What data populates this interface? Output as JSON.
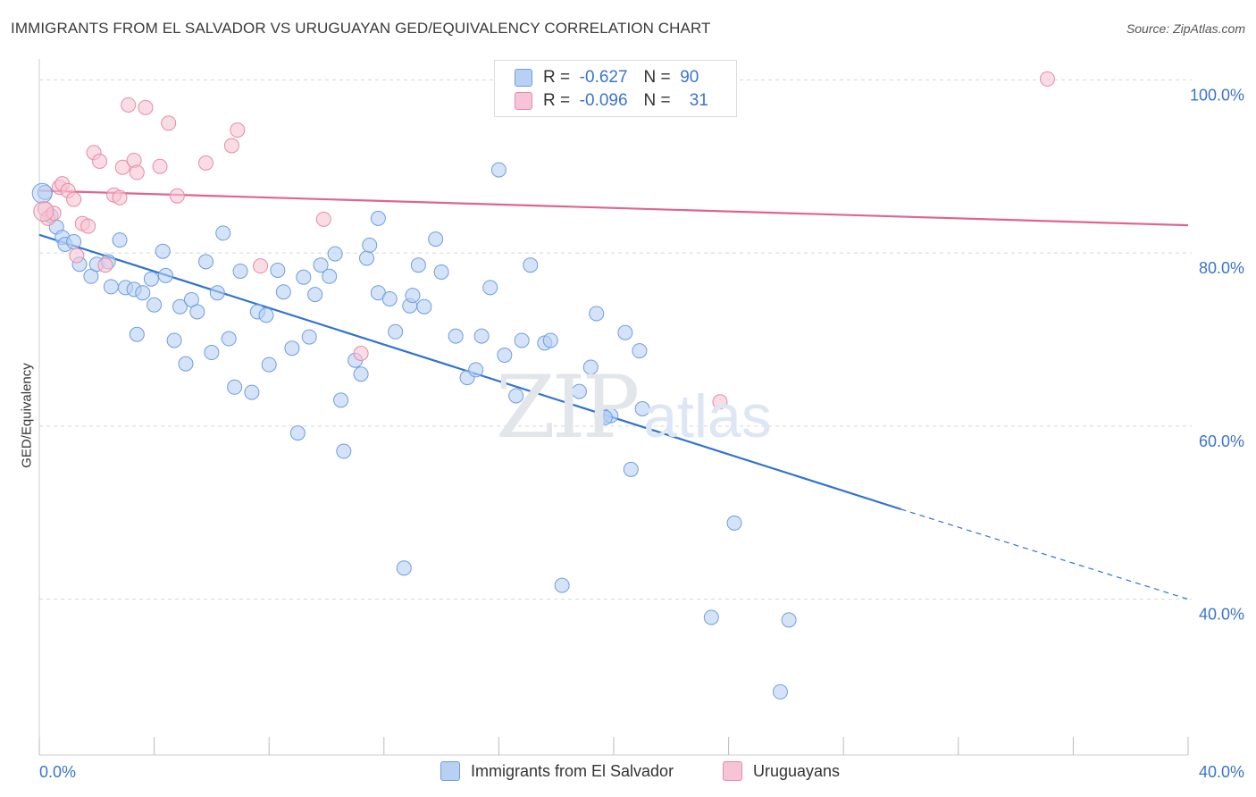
{
  "title": "IMMIGRANTS FROM EL SALVADOR VS URUGUAYAN GED/EQUIVALENCY CORRELATION CHART",
  "source": "Source: ZipAtlas.com",
  "watermark": {
    "zip": "ZIP",
    "atlas": "atlas"
  },
  "legend": {
    "rows": [
      {
        "r_label": "R =",
        "r_value": "-0.627",
        "n_label": "N =",
        "n_value": "90"
      },
      {
        "r_label": "R =",
        "r_value": "-0.096",
        "n_label": "N =",
        "n_value": "31"
      }
    ]
  },
  "bottom_legend": [
    "Immigrants from El Salvador",
    "Uruguayans"
  ],
  "colors": {
    "blue_fill": "#b8d0f3",
    "blue_stroke": "#6f9ee0",
    "blue_line": "#2f74d0",
    "pink_fill": "#f6c4d4",
    "pink_stroke": "#e88aa8",
    "pink_line": "#e0648c",
    "tick_label": "#3a74cc",
    "grid": "#d8d8d8"
  },
  "chart_data": {
    "type": "scatter",
    "title": "IMMIGRANTS FROM EL SALVADOR VS URUGUAYAN GED/EQUIVALENCY CORRELATION CHART",
    "xlabel": "",
    "ylabel": "GED/Equivalency",
    "xlim": [
      0,
      40
    ],
    "ylim": [
      22,
      102
    ],
    "x_tick_labels": [
      "0.0%",
      "40.0%"
    ],
    "y_ticks": [
      40,
      60,
      80,
      100
    ],
    "y_tick_labels": [
      "40.0%",
      "60.0%",
      "80.0%",
      "100.0%"
    ],
    "grid": true,
    "legend_position": "top-center",
    "series": [
      {
        "name": "Immigrants from El Salvador",
        "color": "#6f9ee0",
        "trend": {
          "x0": 0,
          "y0": 82.1,
          "x1": 30,
          "y1": 50.4,
          "dashed_to_x": 40,
          "dashed_to_y": 40.0
        },
        "points": [
          [
            0.2,
            87.0
          ],
          [
            0.4,
            84.3
          ],
          [
            0.6,
            83.0
          ],
          [
            0.8,
            81.8
          ],
          [
            0.9,
            81.0
          ],
          [
            1.2,
            81.3
          ],
          [
            1.4,
            78.7
          ],
          [
            1.8,
            77.3
          ],
          [
            2.0,
            78.7
          ],
          [
            2.4,
            79.0
          ],
          [
            2.5,
            76.1
          ],
          [
            2.8,
            81.5
          ],
          [
            3.0,
            76.0
          ],
          [
            3.3,
            75.8
          ],
          [
            3.4,
            70.6
          ],
          [
            3.6,
            75.4
          ],
          [
            3.9,
            77.0
          ],
          [
            4.0,
            74.0
          ],
          [
            4.3,
            80.2
          ],
          [
            4.4,
            77.4
          ],
          [
            4.7,
            69.9
          ],
          [
            4.9,
            73.8
          ],
          [
            5.1,
            67.2
          ],
          [
            5.3,
            74.6
          ],
          [
            5.5,
            73.2
          ],
          [
            5.8,
            79.0
          ],
          [
            6.0,
            68.5
          ],
          [
            6.2,
            75.4
          ],
          [
            6.4,
            82.3
          ],
          [
            6.6,
            70.1
          ],
          [
            6.8,
            64.5
          ],
          [
            7.0,
            77.9
          ],
          [
            7.4,
            63.9
          ],
          [
            7.6,
            73.2
          ],
          [
            7.9,
            72.8
          ],
          [
            8.0,
            67.1
          ],
          [
            8.3,
            78.0
          ],
          [
            8.5,
            75.5
          ],
          [
            8.8,
            69.0
          ],
          [
            9.0,
            59.2
          ],
          [
            9.2,
            77.2
          ],
          [
            9.4,
            70.3
          ],
          [
            9.6,
            75.2
          ],
          [
            9.8,
            78.6
          ],
          [
            10.1,
            77.3
          ],
          [
            10.3,
            79.9
          ],
          [
            10.5,
            63.0
          ],
          [
            10.6,
            57.1
          ],
          [
            11.0,
            67.6
          ],
          [
            11.2,
            66.0
          ],
          [
            11.4,
            79.4
          ],
          [
            11.5,
            80.9
          ],
          [
            11.8,
            75.4
          ],
          [
            11.8,
            84.0
          ],
          [
            12.2,
            74.7
          ],
          [
            12.4,
            70.9
          ],
          [
            12.7,
            43.6
          ],
          [
            12.9,
            73.9
          ],
          [
            13.0,
            75.1
          ],
          [
            13.2,
            78.6
          ],
          [
            13.4,
            73.8
          ],
          [
            13.8,
            81.6
          ],
          [
            14.0,
            77.8
          ],
          [
            14.5,
            70.4
          ],
          [
            14.9,
            65.6
          ],
          [
            15.2,
            66.5
          ],
          [
            15.4,
            70.4
          ],
          [
            15.7,
            76.0
          ],
          [
            16.0,
            89.6
          ],
          [
            16.2,
            68.2
          ],
          [
            16.6,
            63.5
          ],
          [
            16.8,
            69.9
          ],
          [
            17.1,
            78.6
          ],
          [
            17.6,
            69.6
          ],
          [
            17.8,
            69.9
          ],
          [
            18.2,
            41.6
          ],
          [
            18.8,
            64.0
          ],
          [
            19.2,
            66.8
          ],
          [
            19.4,
            73.0
          ],
          [
            19.6,
            61.2
          ],
          [
            19.9,
            61.2
          ],
          [
            20.4,
            70.8
          ],
          [
            20.6,
            55.0
          ],
          [
            20.9,
            68.7
          ],
          [
            23.4,
            37.9
          ],
          [
            24.2,
            48.8
          ],
          [
            25.8,
            29.3
          ],
          [
            26.1,
            37.6
          ],
          [
            19.7,
            61.0
          ],
          [
            21.0,
            62.0
          ]
        ]
      },
      {
        "name": "Uruguayans",
        "color": "#e88aa8",
        "trend": {
          "x0": 0,
          "y0": 87.2,
          "x1": 40,
          "y1": 83.2
        },
        "points": [
          [
            0.2,
            85.1
          ],
          [
            0.3,
            84.0
          ],
          [
            0.5,
            84.6
          ],
          [
            0.7,
            87.6
          ],
          [
            0.8,
            88.0
          ],
          [
            1.0,
            87.2
          ],
          [
            1.2,
            86.2
          ],
          [
            1.3,
            79.7
          ],
          [
            1.5,
            83.4
          ],
          [
            1.7,
            83.1
          ],
          [
            1.9,
            91.6
          ],
          [
            2.1,
            90.6
          ],
          [
            2.3,
            78.6
          ],
          [
            2.6,
            86.7
          ],
          [
            2.8,
            86.4
          ],
          [
            2.9,
            89.9
          ],
          [
            3.1,
            97.1
          ],
          [
            3.3,
            90.7
          ],
          [
            3.4,
            89.3
          ],
          [
            3.7,
            96.8
          ],
          [
            4.2,
            90.0
          ],
          [
            4.5,
            95.0
          ],
          [
            4.8,
            86.6
          ],
          [
            5.8,
            90.4
          ],
          [
            6.7,
            92.4
          ],
          [
            6.9,
            94.2
          ],
          [
            7.7,
            78.5
          ],
          [
            9.9,
            83.9
          ],
          [
            11.2,
            68.4
          ],
          [
            23.7,
            62.8
          ],
          [
            35.1,
            100.1
          ]
        ]
      }
    ]
  }
}
